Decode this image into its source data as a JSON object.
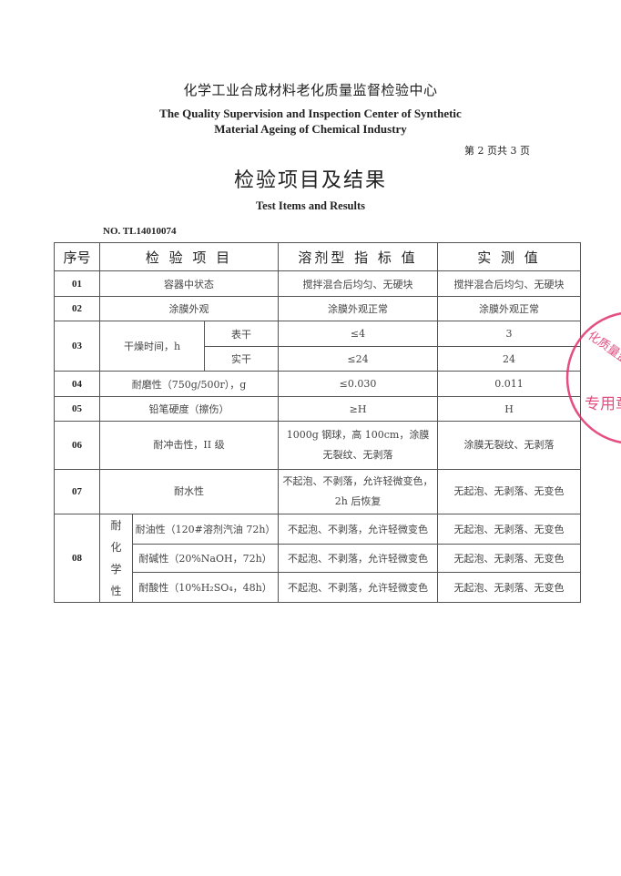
{
  "header": {
    "org_cn": "化学工业合成材料老化质量监督检验中心",
    "org_en_line1": "The Quality Supervision and Inspection Center of Synthetic",
    "org_en_line2": "Material Ageing of Chemical Industry",
    "page_number": "第 2 页共 3 页"
  },
  "title": {
    "cn": "检验项目及结果",
    "en": "Test Items and Results"
  },
  "report_no": "NO. TL14010074",
  "table": {
    "headers": [
      "序号",
      "检 验 项 目",
      "溶剂型 指 标 值",
      "实 测 值"
    ],
    "rows": [
      {
        "no": "01",
        "item": "容器中状态",
        "standard": "搅拌混合后均匀、无硬块",
        "result": "搅拌混合后均匀、无硬块"
      },
      {
        "no": "02",
        "item": "涂膜外观",
        "standard": "涂膜外观正常",
        "result": "涂膜外观正常"
      },
      {
        "no": "03",
        "item": "干燥时间，h",
        "sub": [
          {
            "name": "表干",
            "standard": "≤4",
            "result": "3"
          },
          {
            "name": "实干",
            "standard": "≤24",
            "result": "24"
          }
        ]
      },
      {
        "no": "04",
        "item": "耐磨性（750g/500r），g",
        "standard": "≤0.030",
        "result": "0.011"
      },
      {
        "no": "05",
        "item": "铅笔硬度（擦伤）",
        "standard": "≥H",
        "result": "H"
      },
      {
        "no": "06",
        "item": "耐冲击性，II 级",
        "standard": "1000g 钢球，高 100cm，涂膜无裂纹、无剥落",
        "result": "涂膜无裂纹、无剥落"
      },
      {
        "no": "07",
        "item": "耐水性",
        "standard": "不起泡、不剥落，允许轻微变色，2h 后恢复",
        "result": "无起泡、无剥落、无变色"
      },
      {
        "no": "08",
        "item": "耐化学性",
        "sub": [
          {
            "name": "耐油性（120#溶剂汽油 72h）",
            "standard": "不起泡、不剥落，允许轻微变色",
            "result": "无起泡、无剥落、无变色"
          },
          {
            "name": "耐碱性（20%NaOH，72h）",
            "standard": "不起泡、不剥落，允许轻微变色",
            "result": "无起泡、无剥落、无变色"
          },
          {
            "name": "耐酸性（10%H₂SO₄，48h）",
            "standard": "不起泡、不剥落，允许轻微变色",
            "result": "无起泡、无剥落、无变色"
          }
        ]
      }
    ]
  },
  "stamp": {
    "text_top": "化质量监",
    "text_bottom": "专用章",
    "color": "#e0306a"
  }
}
